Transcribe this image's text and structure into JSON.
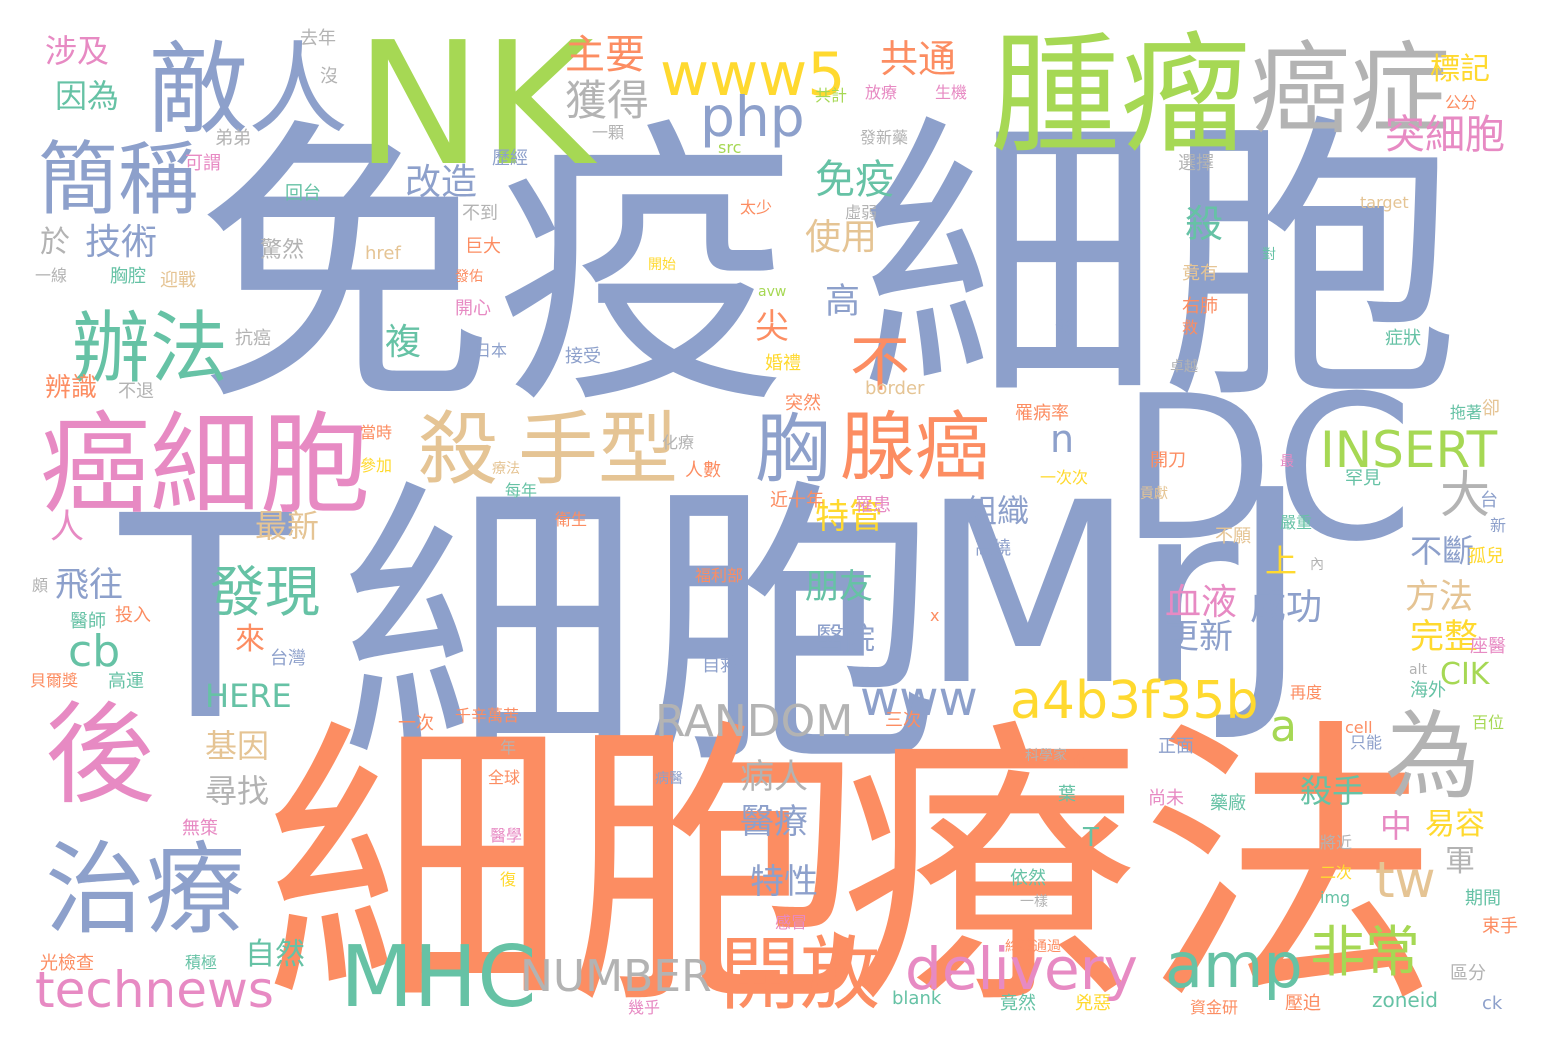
{
  "palette": {
    "blue": "#8da0cb",
    "orange": "#fc8d62",
    "green": "#a6d854",
    "teal": "#66c2a5",
    "pink": "#e78ac3",
    "yellow": "#ffd92f",
    "tan": "#e5c494",
    "gray": "#b3b3b3"
  },
  "words": [
    {
      "text": "免疫",
      "color": "blue"
    },
    {
      "text": "細胞",
      "color": "blue"
    },
    {
      "text": "細胞",
      "color": "blue"
    },
    {
      "text": "細胞",
      "color": "orange"
    },
    {
      "text": "療法",
      "color": "orange"
    },
    {
      "text": "Mr",
      "color": "blue"
    },
    {
      "text": "DC",
      "color": "blue"
    },
    {
      "text": "T",
      "color": "blue"
    },
    {
      "text": "J",
      "color": "blue"
    },
    {
      "text": "NK",
      "color": "green"
    },
    {
      "text": "腫瘤",
      "color": "green"
    },
    {
      "text": "癌症",
      "color": "gray"
    },
    {
      "text": "敵人",
      "color": "blue"
    },
    {
      "text": "癌細胞",
      "color": "pink"
    },
    {
      "text": "後",
      "color": "pink"
    },
    {
      "text": "治療",
      "color": "blue"
    },
    {
      "text": "簡稱",
      "color": "blue"
    },
    {
      "text": "辦法",
      "color": "teal"
    },
    {
      "text": "殺",
      "color": "tan"
    },
    {
      "text": "手型",
      "color": "tan"
    },
    {
      "text": "胸",
      "color": "blue"
    },
    {
      "text": "腺癌",
      "color": "orange"
    },
    {
      "text": "MHC",
      "color": "teal"
    },
    {
      "text": "為",
      "color": "gray"
    },
    {
      "text": "www5",
      "color": "yellow"
    },
    {
      "text": "php",
      "color": "blue"
    },
    {
      "text": "a4b3f35b",
      "color": "yellow"
    },
    {
      "text": "www",
      "color": "blue"
    },
    {
      "text": "delivery",
      "color": "pink"
    },
    {
      "text": "amp",
      "color": "teal"
    },
    {
      "text": "technews",
      "color": "pink"
    },
    {
      "text": "開放",
      "color": "orange"
    },
    {
      "text": "非常",
      "color": "green"
    },
    {
      "text": "RANDOM",
      "color": "gray"
    },
    {
      "text": "NUMBER",
      "color": "gray"
    },
    {
      "text": "INSERT",
      "color": "green"
    },
    {
      "text": "發現",
      "color": "teal"
    },
    {
      "text": "不",
      "color": "orange"
    },
    {
      "text": "n",
      "color": "blue"
    },
    {
      "text": "大",
      "color": "gray"
    },
    {
      "text": "tw",
      "color": "tan"
    },
    {
      "text": "cb",
      "color": "teal"
    },
    {
      "text": "a",
      "color": "green"
    },
    {
      "text": "獲得",
      "color": "gray"
    },
    {
      "text": "主要",
      "color": "orange"
    },
    {
      "text": "共通",
      "color": "orange"
    },
    {
      "text": "突細胞",
      "color": "pink"
    },
    {
      "text": "免疫",
      "color": "teal"
    },
    {
      "text": "殺",
      "color": "teal"
    },
    {
      "text": "使用",
      "color": "tan"
    },
    {
      "text": "改造",
      "color": "blue"
    },
    {
      "text": "技術",
      "color": "blue"
    },
    {
      "text": "涉及",
      "color": "pink"
    },
    {
      "text": "因為",
      "color": "teal"
    },
    {
      "text": "標記",
      "color": "yellow"
    },
    {
      "text": "高",
      "color": "blue"
    },
    {
      "text": "複",
      "color": "teal"
    },
    {
      "text": "尖",
      "color": "orange"
    },
    {
      "text": "特管",
      "color": "yellow"
    },
    {
      "text": "朋友",
      "color": "teal"
    },
    {
      "text": "醫院",
      "color": "blue"
    },
    {
      "text": "組織",
      "color": "blue"
    },
    {
      "text": "最新",
      "color": "tan"
    },
    {
      "text": "飛往",
      "color": "blue"
    },
    {
      "text": "來",
      "color": "orange"
    },
    {
      "text": "HERE",
      "color": "teal"
    },
    {
      "text": "基因",
      "color": "tan"
    },
    {
      "text": "尋找",
      "color": "gray"
    },
    {
      "text": "血液",
      "color": "pink"
    },
    {
      "text": "成功",
      "color": "blue"
    },
    {
      "text": "更新",
      "color": "blue"
    },
    {
      "text": "上",
      "color": "yellow"
    },
    {
      "text": "不斷",
      "color": "blue"
    },
    {
      "text": "方法",
      "color": "tan"
    },
    {
      "text": "完整",
      "color": "yellow"
    },
    {
      "text": "CIK",
      "color": "green"
    },
    {
      "text": "病人",
      "color": "gray"
    },
    {
      "text": "醫療",
      "color": "blue"
    },
    {
      "text": "殺手",
      "color": "teal"
    },
    {
      "text": "中",
      "color": "pink"
    },
    {
      "text": "易容",
      "color": "yellow"
    },
    {
      "text": "特性",
      "color": "blue"
    },
    {
      "text": "自然",
      "color": "teal"
    },
    {
      "text": "軍",
      "color": "gray"
    },
    {
      "text": "T",
      "color": "teal"
    },
    {
      "text": "人",
      "color": "pink"
    },
    {
      "text": "辨識",
      "color": "orange"
    },
    {
      "text": "於",
      "color": "gray"
    },
    {
      "text": "去年",
      "color": "gray"
    },
    {
      "text": "沒",
      "color": "gray"
    },
    {
      "text": "共計",
      "color": "green"
    },
    {
      "text": "放療",
      "color": "pink"
    },
    {
      "text": "生機",
      "color": "pink"
    },
    {
      "text": "公分",
      "color": "orange"
    },
    {
      "text": "一顆",
      "color": "gray"
    },
    {
      "text": "發新藥",
      "color": "gray"
    },
    {
      "text": "弟弟",
      "color": "gray"
    },
    {
      "text": "可謂",
      "color": "pink"
    },
    {
      "text": "回台",
      "color": "teal"
    },
    {
      "text": "src",
      "color": "green"
    },
    {
      "text": "歷經",
      "color": "blue"
    },
    {
      "text": "選擇",
      "color": "gray"
    },
    {
      "text": "不到",
      "color": "gray"
    },
    {
      "text": "太少",
      "color": "orange"
    },
    {
      "text": "虛弱",
      "color": "gray"
    },
    {
      "text": "target",
      "color": "tan"
    },
    {
      "text": "巨大",
      "color": "orange"
    },
    {
      "text": "驚然",
      "color": "gray"
    },
    {
      "text": "href",
      "color": "tan"
    },
    {
      "text": "竟有",
      "color": "tan"
    },
    {
      "text": "胸腔",
      "color": "teal"
    },
    {
      "text": "迎戰",
      "color": "tan"
    },
    {
      "text": "一線",
      "color": "gray"
    },
    {
      "text": "發佑",
      "color": "orange"
    },
    {
      "text": "開始",
      "color": "yellow"
    },
    {
      "text": "對",
      "color": "teal"
    },
    {
      "text": "avw",
      "color": "green"
    },
    {
      "text": "右肺",
      "color": "orange"
    },
    {
      "text": "抗癌",
      "color": "gray"
    },
    {
      "text": "開心",
      "color": "pink"
    },
    {
      "text": "日本",
      "color": "blue"
    },
    {
      "text": "接受",
      "color": "blue"
    },
    {
      "text": "發",
      "color": "blue"
    },
    {
      "text": "救",
      "color": "orange"
    },
    {
      "text": "症狀",
      "color": "teal"
    },
    {
      "text": "婚禮",
      "color": "yellow"
    },
    {
      "text": "不退",
      "color": "gray"
    },
    {
      "text": "border",
      "color": "tan"
    },
    {
      "text": "卓越",
      "color": "gray"
    },
    {
      "text": "突然",
      "color": "orange"
    },
    {
      "text": "拖著",
      "color": "teal"
    },
    {
      "text": "卻",
      "color": "tan"
    },
    {
      "text": "罹病率",
      "color": "orange"
    },
    {
      "text": "當時",
      "color": "orange"
    },
    {
      "text": "化療",
      "color": "gray"
    },
    {
      "text": "參加",
      "color": "yellow"
    },
    {
      "text": "療法",
      "color": "tan"
    },
    {
      "text": "人數",
      "color": "orange"
    },
    {
      "text": "開刀",
      "color": "orange"
    },
    {
      "text": "一次次",
      "color": "yellow"
    },
    {
      "text": "最",
      "color": "pink"
    },
    {
      "text": "貢獻",
      "color": "tan"
    },
    {
      "text": "罕見",
      "color": "teal"
    },
    {
      "text": "每年",
      "color": "teal"
    },
    {
      "text": "近十年",
      "color": "orange"
    },
    {
      "text": "嚴重",
      "color": "teal"
    },
    {
      "text": "罹患",
      "color": "pink"
    },
    {
      "text": "台",
      "color": "blue"
    },
    {
      "text": "新",
      "color": "blue"
    },
    {
      "text": "衛生",
      "color": "orange"
    },
    {
      "text": "高燒",
      "color": "blue"
    },
    {
      "text": "不願",
      "color": "tan"
    },
    {
      "text": "福利部",
      "color": "orange"
    },
    {
      "text": "孤兒",
      "color": "yellow"
    },
    {
      "text": "內",
      "color": "gray"
    },
    {
      "text": "頗",
      "color": "gray"
    },
    {
      "text": "醫師",
      "color": "teal"
    },
    {
      "text": "投入",
      "color": "orange"
    },
    {
      "text": "台灣",
      "color": "blue"
    },
    {
      "text": "x",
      "color": "orange"
    },
    {
      "text": "座醫",
      "color": "pink"
    },
    {
      "text": "自救",
      "color": "blue"
    },
    {
      "text": "alt",
      "color": "gray"
    },
    {
      "text": "貝爾獎",
      "color": "orange"
    },
    {
      "text": "高運",
      "color": "teal"
    },
    {
      "text": "再度",
      "color": "orange"
    },
    {
      "text": "海外",
      "color": "teal"
    },
    {
      "text": "一次",
      "color": "orange"
    },
    {
      "text": "千辛萬苦",
      "color": "orange"
    },
    {
      "text": "三次",
      "color": "orange"
    },
    {
      "text": "cell",
      "color": "orange"
    },
    {
      "text": "只能",
      "color": "blue"
    },
    {
      "text": "百位",
      "color": "green"
    },
    {
      "text": "年",
      "color": "gray"
    },
    {
      "text": "正面",
      "color": "blue"
    },
    {
      "text": "科學家",
      "color": "gray"
    },
    {
      "text": "一命",
      "color": "orange"
    },
    {
      "text": "全球",
      "color": "orange"
    },
    {
      "text": "病醫",
      "color": "blue"
    },
    {
      "text": "葉",
      "color": "teal"
    },
    {
      "text": "尚未",
      "color": "pink"
    },
    {
      "text": "藥廠",
      "color": "teal"
    },
    {
      "text": "無策",
      "color": "pink"
    },
    {
      "text": "醫學",
      "color": "pink"
    },
    {
      "text": "將近",
      "color": "gray"
    },
    {
      "text": "復",
      "color": "yellow"
    },
    {
      "text": "依然",
      "color": "teal"
    },
    {
      "text": "二次",
      "color": "yellow"
    },
    {
      "text": "一樣",
      "color": "gray"
    },
    {
      "text": "img",
      "color": "teal"
    },
    {
      "text": "期間",
      "color": "teal"
    },
    {
      "text": "感冒",
      "color": "pink"
    },
    {
      "text": "束手",
      "color": "orange"
    },
    {
      "text": "光檢查",
      "color": "orange"
    },
    {
      "text": "積極",
      "color": "teal"
    },
    {
      "text": "終於通過",
      "color": "orange"
    },
    {
      "text": "區分",
      "color": "gray"
    },
    {
      "text": "幾乎",
      "color": "pink"
    },
    {
      "text": "blank",
      "color": "teal"
    },
    {
      "text": "竟然",
      "color": "teal"
    },
    {
      "text": "兇惡",
      "color": "yellow"
    },
    {
      "text": "資金研",
      "color": "orange"
    },
    {
      "text": "壓迫",
      "color": "orange"
    },
    {
      "text": "zoneid",
      "color": "teal"
    },
    {
      "text": "ck",
      "color": "blue"
    }
  ]
}
